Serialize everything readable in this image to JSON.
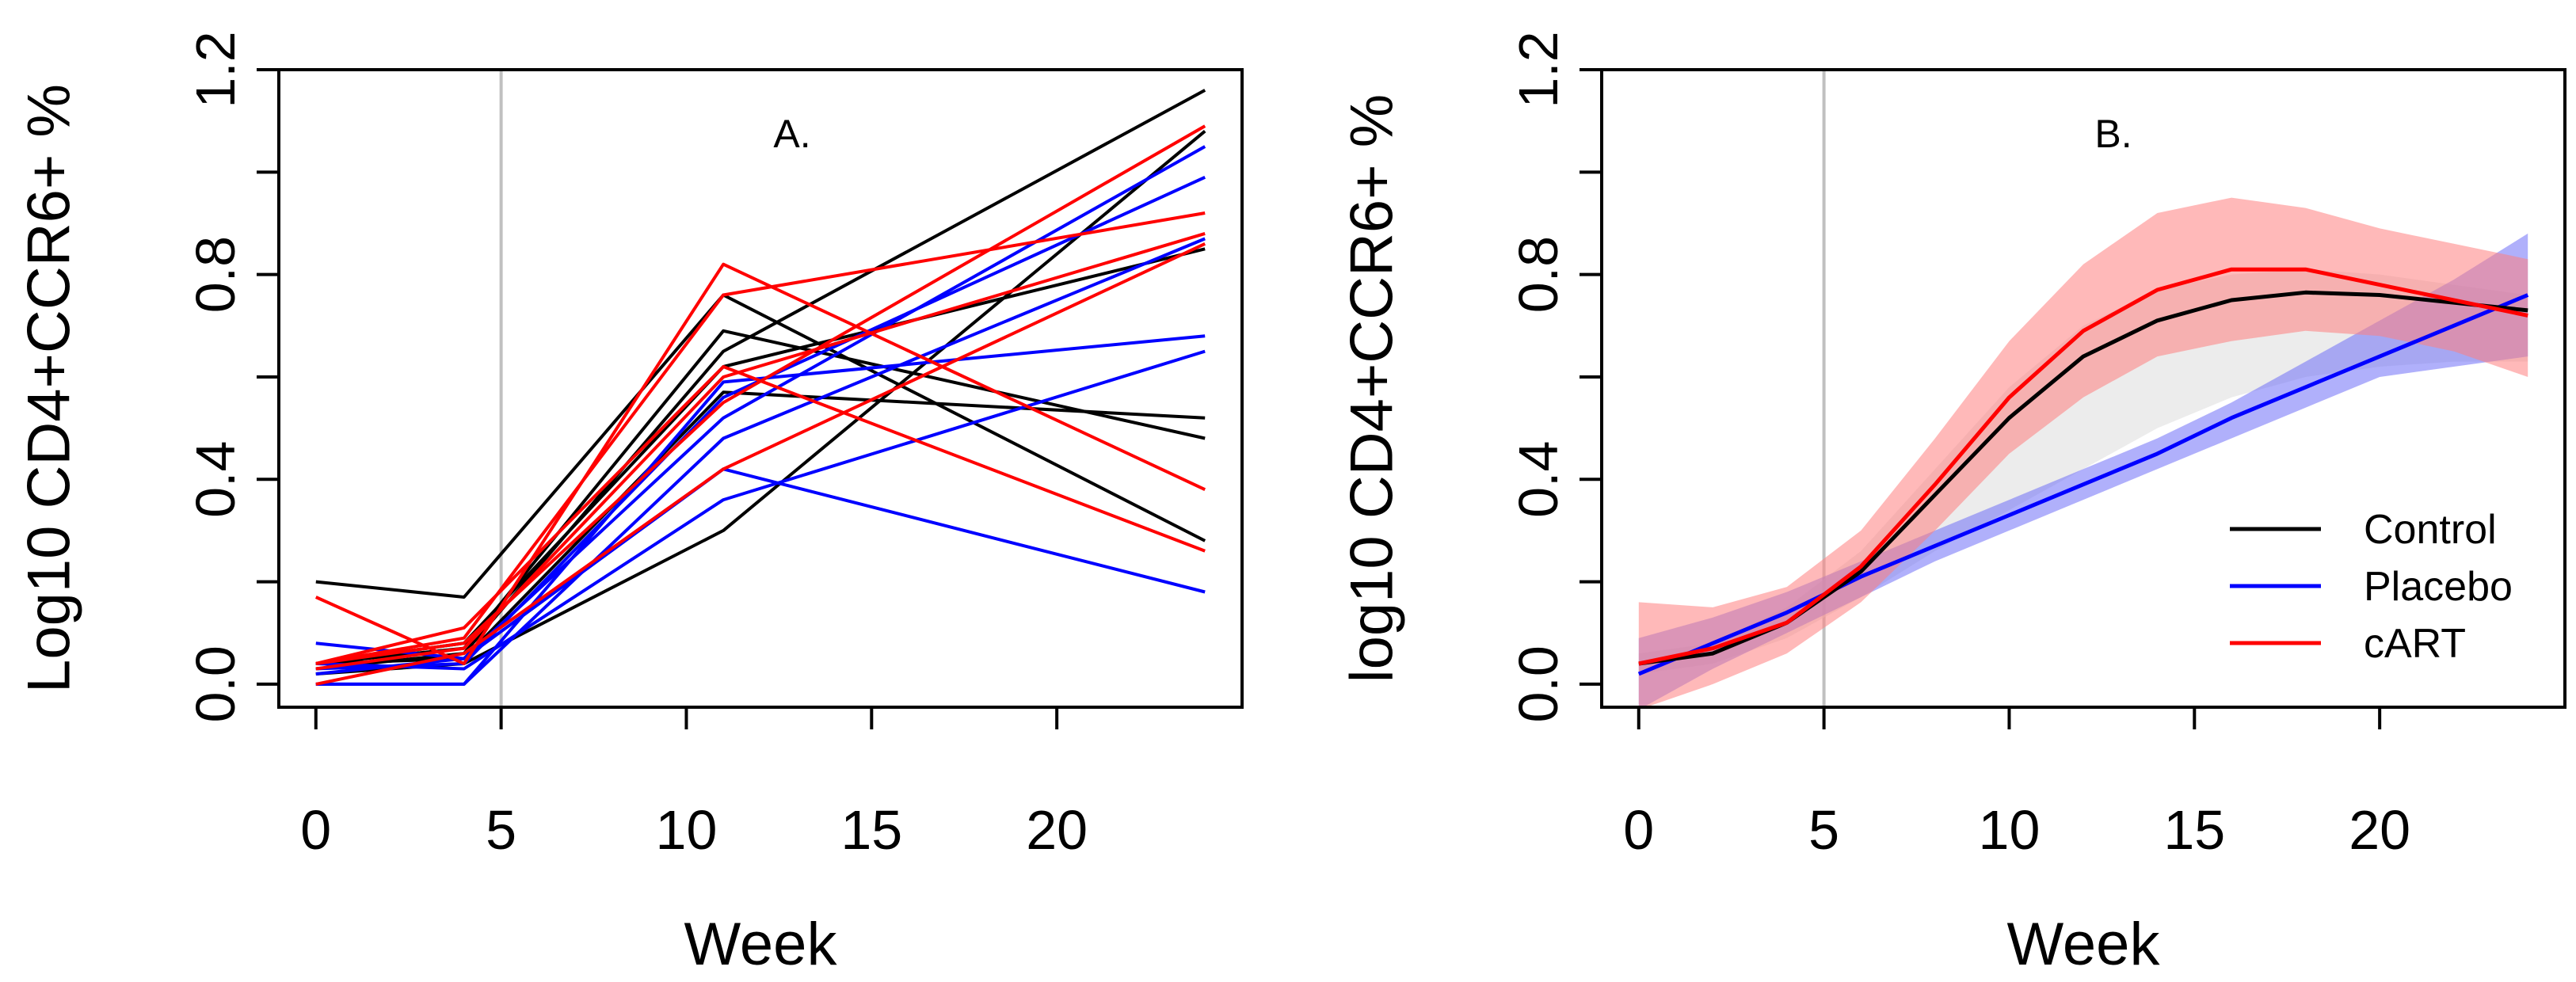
{
  "chart_data": [
    {
      "type": "line",
      "panel_label": "A.",
      "xlabel": "Week",
      "ylabel": "Log10 CD4+CCR6+ %",
      "xlim": [
        -1,
        25
      ],
      "ylim": [
        -0.045,
        1.2
      ],
      "x_ticks": [
        "0",
        "5",
        "10",
        "15",
        "20"
      ],
      "y_ticks": [
        "0.0",
        "0.4",
        "0.8",
        "1.2"
      ],
      "reference_line_x": 5,
      "reference_line_color": "#c0c0c0",
      "x": [
        0,
        4,
        11,
        24
      ],
      "groups": [
        {
          "name": "Control",
          "color": "#000000",
          "subjects": [
            [
              0.2,
              0.17,
              0.76,
              0.28
            ],
            [
              0.04,
              0.07,
              0.69,
              0.48
            ],
            [
              0.03,
              0.06,
              0.65,
              1.16
            ],
            [
              0.02,
              0.04,
              0.3,
              1.08
            ],
            [
              0.04,
              0.05,
              0.57,
              0.52
            ],
            [
              0.04,
              0.08,
              0.62,
              0.85
            ]
          ]
        },
        {
          "name": "Placebo",
          "color": "#0000ff",
          "subjects": [
            [
              0.08,
              0.05,
              0.42,
              0.18
            ],
            [
              0.04,
              0.03,
              0.36,
              0.65
            ],
            [
              0.0,
              0.0,
              0.48,
              0.87
            ],
            [
              0.0,
              0.0,
              0.59,
              0.68
            ],
            [
              0.02,
              0.05,
              0.52,
              1.05
            ],
            [
              0.03,
              0.04,
              0.56,
              0.99
            ]
          ]
        },
        {
          "name": "cART",
          "color": "#ff0000",
          "subjects": [
            [
              0.17,
              0.04,
              0.82,
              0.38
            ],
            [
              0.04,
              0.09,
              0.76,
              0.92
            ],
            [
              0.04,
              0.11,
              0.62,
              0.26
            ],
            [
              0.0,
              0.06,
              0.42,
              0.86
            ],
            [
              0.04,
              0.08,
              0.55,
              1.09
            ],
            [
              0.03,
              0.07,
              0.6,
              0.88
            ]
          ]
        }
      ]
    },
    {
      "type": "line",
      "panel_label": "B.",
      "xlabel": "Week",
      "ylabel": "log10 CD4+CCR6+ %",
      "xlim": [
        -1,
        25
      ],
      "ylim": [
        -0.045,
        1.2
      ],
      "x_ticks": [
        "0",
        "5",
        "10",
        "15",
        "20"
      ],
      "y_ticks": [
        "0.0",
        "0.4",
        "0.8",
        "1.2"
      ],
      "reference_line_x": 5,
      "reference_line_color": "#c0c0c0",
      "legend_position": "bottom-right",
      "series": [
        {
          "name": "Control",
          "color": "#000000",
          "band_color": "#dcdcdc",
          "x": [
            0,
            2,
            4,
            6,
            8,
            10,
            12,
            14,
            16,
            18,
            20,
            22,
            24
          ],
          "y": [
            0.04,
            0.06,
            0.12,
            0.22,
            0.37,
            0.52,
            0.64,
            0.71,
            0.75,
            0.765,
            0.76,
            0.745,
            0.73
          ],
          "lower": [
            0.02,
            0.04,
            0.09,
            0.17,
            0.26,
            0.34,
            0.42,
            0.5,
            0.56,
            0.6,
            0.62,
            0.63,
            0.63
          ],
          "upper": [
            0.06,
            0.08,
            0.15,
            0.26,
            0.42,
            0.58,
            0.7,
            0.77,
            0.8,
            0.81,
            0.8,
            0.78,
            0.76
          ]
        },
        {
          "name": "Placebo",
          "color": "#0000ff",
          "band_color": "#6f6ff7",
          "x": [
            0,
            2,
            4,
            6,
            8,
            10,
            12,
            14,
            16,
            18,
            20,
            22,
            24
          ],
          "y": [
            0.02,
            0.08,
            0.14,
            0.21,
            0.27,
            0.33,
            0.39,
            0.45,
            0.52,
            0.58,
            0.64,
            0.7,
            0.76
          ],
          "lower": [
            -0.05,
            0.03,
            0.1,
            0.17,
            0.24,
            0.3,
            0.36,
            0.42,
            0.48,
            0.54,
            0.6,
            0.62,
            0.64
          ],
          "upper": [
            0.09,
            0.13,
            0.18,
            0.24,
            0.3,
            0.36,
            0.42,
            0.48,
            0.55,
            0.63,
            0.71,
            0.79,
            0.88
          ]
        },
        {
          "name": "cART",
          "color": "#ff0000",
          "band_color": "#ff8080",
          "x": [
            0,
            2,
            4,
            6,
            8,
            10,
            12,
            14,
            16,
            18,
            20,
            22,
            24
          ],
          "y": [
            0.04,
            0.07,
            0.12,
            0.23,
            0.39,
            0.56,
            0.69,
            0.77,
            0.81,
            0.81,
            0.78,
            0.75,
            0.72
          ],
          "lower": [
            -0.05,
            0.0,
            0.06,
            0.16,
            0.3,
            0.45,
            0.56,
            0.64,
            0.67,
            0.69,
            0.68,
            0.65,
            0.6
          ],
          "upper": [
            0.16,
            0.15,
            0.19,
            0.3,
            0.48,
            0.67,
            0.82,
            0.92,
            0.95,
            0.93,
            0.89,
            0.86,
            0.83
          ]
        }
      ]
    }
  ]
}
